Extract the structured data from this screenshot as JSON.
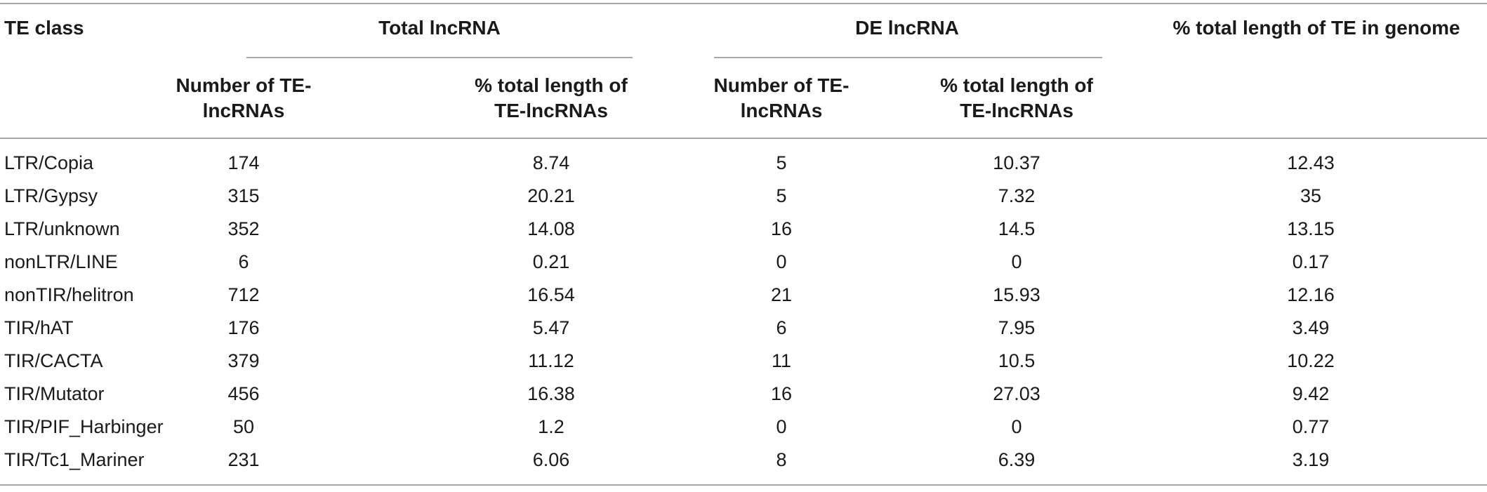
{
  "table": {
    "header": {
      "te_class": "TE class",
      "total_group": "Total lncRNA",
      "de_group": "DE lncRNA",
      "genome_col": "% total length of TE in genome",
      "sub": {
        "total_number": "Number of TE-lncRNAs",
        "total_pct": "% total length of TE-lncRNAs",
        "de_number": "Number of TE-lncRNAs",
        "de_pct": "% total length of TE-lncRNAs"
      }
    },
    "rows": [
      {
        "te_class": "LTR/Copia",
        "total_number": "174",
        "total_pct": "8.74",
        "de_number": "5",
        "de_pct": "10.37",
        "genome_pct": "12.43"
      },
      {
        "te_class": "LTR/Gypsy",
        "total_number": "315",
        "total_pct": "20.21",
        "de_number": "5",
        "de_pct": "7.32",
        "genome_pct": "35"
      },
      {
        "te_class": "LTR/unknown",
        "total_number": "352",
        "total_pct": "14.08",
        "de_number": "16",
        "de_pct": "14.5",
        "genome_pct": "13.15"
      },
      {
        "te_class": "nonLTR/LINE",
        "total_number": "6",
        "total_pct": "0.21",
        "de_number": "0",
        "de_pct": "0",
        "genome_pct": "0.17"
      },
      {
        "te_class": "nonTIR/helitron",
        "total_number": "712",
        "total_pct": "16.54",
        "de_number": "21",
        "de_pct": "15.93",
        "genome_pct": "12.16"
      },
      {
        "te_class": "TIR/hAT",
        "total_number": "176",
        "total_pct": "5.47",
        "de_number": "6",
        "de_pct": "7.95",
        "genome_pct": "3.49"
      },
      {
        "te_class": "TIR/CACTA",
        "total_number": "379",
        "total_pct": "11.12",
        "de_number": "11",
        "de_pct": "10.5",
        "genome_pct": "10.22"
      },
      {
        "te_class": "TIR/Mutator",
        "total_number": "456",
        "total_pct": "16.38",
        "de_number": "16",
        "de_pct": "27.03",
        "genome_pct": "9.42"
      },
      {
        "te_class": "TIR/PIF_Harbinger",
        "total_number": "50",
        "total_pct": "1.2",
        "de_number": "0",
        "de_pct": "0",
        "genome_pct": "0.77"
      },
      {
        "te_class": "TIR/Tc1_Mariner",
        "total_number": "231",
        "total_pct": "6.06",
        "de_number": "8",
        "de_pct": "6.39",
        "genome_pct": "3.19"
      }
    ]
  }
}
